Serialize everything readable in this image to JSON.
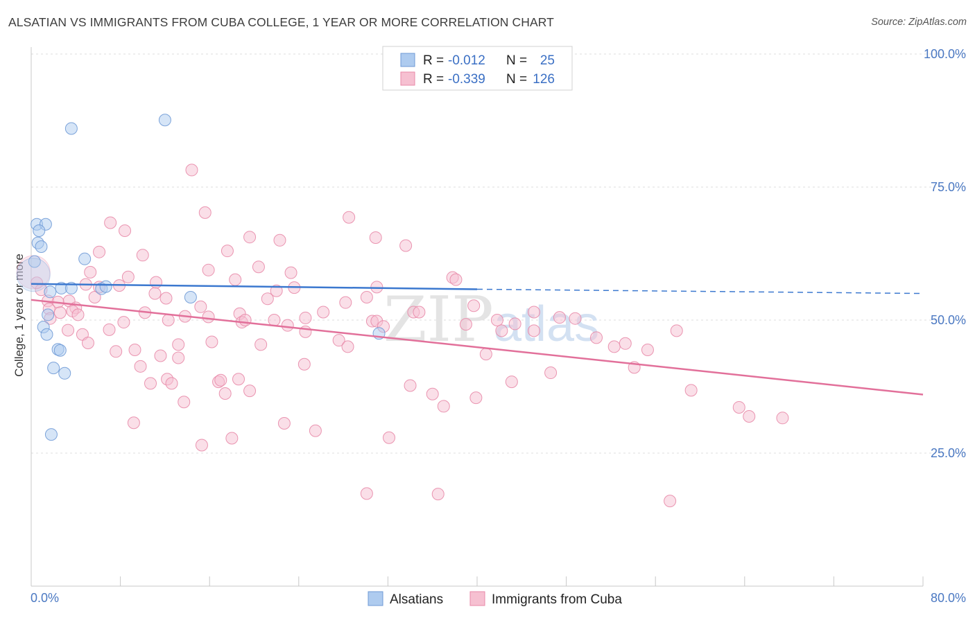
{
  "title": "ALSATIAN VS IMMIGRANTS FROM CUBA COLLEGE, 1 YEAR OR MORE CORRELATION CHART",
  "source": "Source: ZipAtlas.com",
  "watermark": {
    "zip": "ZIP",
    "atlas": "atlas"
  },
  "colors": {
    "blue_fill": "#aecbef",
    "blue_stroke": "#6f9ad6",
    "blue_line": "#3b78cf",
    "pink_fill": "#f6c0d1",
    "pink_stroke": "#e889a8",
    "pink_line": "#e2709a",
    "tick_text": "#4a78c2",
    "grid": "#dddddd"
  },
  "legend": {
    "rows": [
      {
        "r_label": "R =",
        "r_value": "-0.012",
        "n_label": "N =",
        "n_value": "25",
        "series": "blue"
      },
      {
        "r_label": "R =",
        "r_value": "-0.339",
        "n_label": "N =",
        "n_value": "126",
        "series": "pink"
      }
    ]
  },
  "bottom_legend": [
    "Alsatians",
    "Immigrants from Cuba"
  ],
  "chart_data": {
    "type": "scatter",
    "title": "ALSATIAN VS IMMIGRANTS FROM CUBA COLLEGE, 1 YEAR OR MORE CORRELATION CHART",
    "xlabel": "",
    "ylabel": "College, 1 year or more",
    "xlim": [
      0,
      80
    ],
    "ylim": [
      0,
      100
    ],
    "x_tick_labels": {
      "min": "0.0%",
      "max": "80.0%"
    },
    "y_ticks": [
      {
        "value": 25,
        "label": "25.0%"
      },
      {
        "value": 50,
        "label": "50.0%"
      },
      {
        "value": 75,
        "label": "75.0%"
      },
      {
        "value": 100,
        "label": "100.0%"
      }
    ],
    "grid": true,
    "series": [
      {
        "name": "Alsatians",
        "color": "blue",
        "points": [
          [
            3.6,
            86.0
          ],
          [
            12.0,
            87.6
          ],
          [
            0.5,
            68.0
          ],
          [
            1.3,
            68.0
          ],
          [
            0.7,
            66.8
          ],
          [
            0.6,
            64.5
          ],
          [
            0.9,
            63.8
          ],
          [
            0.3,
            61.0
          ],
          [
            4.8,
            61.5
          ],
          [
            1.7,
            55.3
          ],
          [
            2.7,
            56.0
          ],
          [
            3.6,
            56.0
          ],
          [
            6.3,
            55.9
          ],
          [
            6.7,
            56.3
          ],
          [
            14.3,
            54.3
          ],
          [
            1.5,
            51.0
          ],
          [
            1.1,
            48.7
          ],
          [
            1.4,
            47.3
          ],
          [
            2.4,
            44.5
          ],
          [
            2.6,
            44.3
          ],
          [
            2.0,
            41.0
          ],
          [
            3.0,
            40.0
          ],
          [
            1.8,
            28.5
          ],
          [
            31.2,
            47.5
          ],
          [
            0.2,
            58.5
          ]
        ],
        "trend": {
          "x": [
            0,
            40
          ],
          "y": [
            56.8,
            55.8
          ],
          "dashed_to": [
            80,
            55.0
          ]
        }
      },
      {
        "name": "Immigrants from Cuba",
        "color": "pink",
        "points": [
          [
            14.4,
            78.2
          ],
          [
            15.6,
            70.2
          ],
          [
            28.5,
            69.3
          ],
          [
            7.1,
            68.3
          ],
          [
            8.4,
            66.8
          ],
          [
            19.6,
            65.6
          ],
          [
            22.3,
            65.0
          ],
          [
            30.9,
            65.5
          ],
          [
            33.6,
            64.0
          ],
          [
            17.6,
            63.0
          ],
          [
            6.1,
            62.8
          ],
          [
            10.0,
            62.2
          ],
          [
            20.4,
            60.0
          ],
          [
            15.9,
            59.4
          ],
          [
            23.3,
            58.9
          ],
          [
            5.3,
            59.0
          ],
          [
            8.7,
            58.1
          ],
          [
            18.3,
            57.6
          ],
          [
            37.8,
            58.0
          ],
          [
            38.1,
            57.6
          ],
          [
            0.5,
            57.0
          ],
          [
            11.2,
            57.1
          ],
          [
            4.9,
            56.7
          ],
          [
            6.1,
            56.2
          ],
          [
            7.9,
            56.5
          ],
          [
            23.6,
            56.1
          ],
          [
            31.0,
            56.2
          ],
          [
            0.9,
            55.7
          ],
          [
            22.0,
            55.5
          ],
          [
            11.1,
            55.0
          ],
          [
            5.7,
            54.3
          ],
          [
            12.1,
            54.1
          ],
          [
            21.2,
            54.0
          ],
          [
            30.1,
            54.3
          ],
          [
            1.5,
            53.6
          ],
          [
            3.4,
            53.6
          ],
          [
            28.2,
            53.3
          ],
          [
            2.4,
            53.4
          ],
          [
            4.0,
            52.3
          ],
          [
            15.2,
            52.5
          ],
          [
            39.7,
            52.7
          ],
          [
            1.6,
            52.1
          ],
          [
            3.7,
            51.7
          ],
          [
            10.2,
            51.4
          ],
          [
            26.2,
            51.5
          ],
          [
            34.3,
            51.5
          ],
          [
            34.8,
            51.5
          ],
          [
            45.1,
            51.5
          ],
          [
            2.6,
            51.4
          ],
          [
            4.2,
            51.0
          ],
          [
            13.8,
            50.7
          ],
          [
            15.9,
            50.6
          ],
          [
            18.7,
            51.2
          ],
          [
            24.6,
            50.4
          ],
          [
            47.4,
            50.5
          ],
          [
            48.8,
            50.3
          ],
          [
            1.7,
            50.3
          ],
          [
            12.3,
            50.0
          ],
          [
            18.9,
            49.6
          ],
          [
            19.2,
            50.0
          ],
          [
            21.8,
            50.0
          ],
          [
            30.6,
            49.8
          ],
          [
            31.0,
            49.8
          ],
          [
            41.8,
            50.0
          ],
          [
            43.4,
            49.3
          ],
          [
            8.3,
            49.6
          ],
          [
            23.0,
            49.0
          ],
          [
            31.6,
            48.8
          ],
          [
            39.0,
            49.2
          ],
          [
            3.3,
            48.1
          ],
          [
            7.0,
            48.2
          ],
          [
            24.6,
            47.8
          ],
          [
            42.2,
            48.0
          ],
          [
            45.1,
            48.0
          ],
          [
            57.9,
            48.0
          ],
          [
            4.6,
            47.3
          ],
          [
            27.6,
            46.2
          ],
          [
            50.7,
            46.7
          ],
          [
            5.1,
            45.7
          ],
          [
            16.2,
            45.9
          ],
          [
            20.6,
            45.4
          ],
          [
            13.2,
            45.4
          ],
          [
            52.3,
            45.0
          ],
          [
            53.3,
            45.6
          ],
          [
            28.4,
            45.0
          ],
          [
            7.6,
            44.1
          ],
          [
            9.3,
            44.4
          ],
          [
            40.8,
            43.6
          ],
          [
            55.3,
            44.4
          ],
          [
            11.6,
            43.3
          ],
          [
            13.2,
            42.9
          ],
          [
            9.8,
            41.3
          ],
          [
            24.5,
            41.7
          ],
          [
            54.1,
            41.1
          ],
          [
            46.6,
            40.1
          ],
          [
            12.2,
            38.9
          ],
          [
            16.8,
            38.4
          ],
          [
            17.0,
            38.7
          ],
          [
            18.6,
            38.9
          ],
          [
            43.1,
            38.4
          ],
          [
            10.7,
            38.1
          ],
          [
            12.6,
            38.1
          ],
          [
            34.0,
            37.7
          ],
          [
            19.6,
            36.7
          ],
          [
            17.4,
            36.2
          ],
          [
            36.0,
            36.1
          ],
          [
            39.9,
            35.4
          ],
          [
            59.2,
            36.8
          ],
          [
            13.7,
            34.6
          ],
          [
            37.0,
            33.8
          ],
          [
            63.5,
            33.6
          ],
          [
            64.4,
            31.9
          ],
          [
            67.4,
            31.6
          ],
          [
            9.2,
            30.7
          ],
          [
            22.7,
            30.6
          ],
          [
            25.5,
            29.2
          ],
          [
            18.0,
            27.8
          ],
          [
            32.1,
            27.9
          ],
          [
            15.3,
            26.5
          ],
          [
            30.1,
            17.4
          ],
          [
            36.5,
            17.3
          ],
          [
            57.3,
            16.0
          ],
          [
            0.2,
            59.0
          ]
        ],
        "trend": {
          "x": [
            0,
            80
          ],
          "y": [
            53.8,
            36.0
          ]
        }
      }
    ]
  }
}
